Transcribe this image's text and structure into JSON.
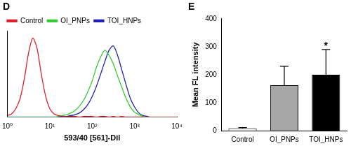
{
  "chart_data": [
    {
      "type": "line",
      "title": "D",
      "x": [
        1,
        1.26,
        1.58,
        2,
        2.51,
        3.16,
        3.98,
        5.01,
        6.31,
        7.94,
        10,
        12.6,
        15.8,
        20,
        25.1,
        31.6,
        39.8,
        50.1,
        63.1,
        79.4,
        100,
        126,
        158,
        200,
        251,
        316,
        398,
        501,
        631,
        794,
        1000,
        1260,
        1580,
        2000,
        2510,
        3160,
        3980,
        5010,
        6310,
        7940,
        10000
      ],
      "series": [
        {
          "name": "Control",
          "color": "#e0202a",
          "values": [
            2,
            4,
            10,
            22,
            45,
            75,
            92,
            80,
            50,
            25,
            10,
            4,
            2,
            1,
            1,
            1,
            1,
            0,
            1,
            1,
            1,
            0,
            1,
            1,
            0,
            1,
            0,
            1,
            0,
            0,
            0,
            0,
            0,
            0,
            0,
            0,
            0,
            0,
            0,
            0,
            0
          ]
        },
        {
          "name": "OI_PNPs",
          "color": "#33cc33",
          "values": [
            0,
            0,
            0,
            0,
            0,
            0,
            0,
            0,
            0,
            0,
            0,
            0,
            1,
            2,
            3,
            5,
            8,
            13,
            20,
            30,
            42,
            58,
            70,
            78,
            72,
            62,
            48,
            35,
            22,
            12,
            6,
            3,
            1,
            0,
            0,
            0,
            0,
            0,
            0,
            0,
            0
          ]
        },
        {
          "name": "TOI_HNPs",
          "color": "#2020b8",
          "values": [
            0,
            0,
            0,
            0,
            0,
            0,
            0,
            0,
            0,
            0,
            0,
            0,
            0,
            0,
            1,
            2,
            3,
            5,
            9,
            15,
            24,
            36,
            50,
            65,
            78,
            83,
            72,
            55,
            38,
            22,
            12,
            5,
            2,
            1,
            0,
            0,
            0,
            0,
            0,
            0,
            0
          ]
        }
      ],
      "xlabel": "593/40 [561]-Dil",
      "log": "x",
      "xlim": [
        1,
        10000
      ],
      "xticks": [
        {
          "value": 1,
          "label": "10⁰"
        },
        {
          "value": 10,
          "label": "10¹"
        },
        {
          "value": 100,
          "label": "10²"
        },
        {
          "value": 1000,
          "label": "10³"
        },
        {
          "value": 10000,
          "label": "10⁴"
        }
      ],
      "ylim": [
        0,
        100
      ],
      "tick_labels": "x",
      "legend": "upper left",
      "grid": false
    },
    {
      "type": "bar",
      "title": "E",
      "categories": [
        "Control",
        "OI_PNPs",
        "TOI_HNPs"
      ],
      "values": [
        8,
        162,
        200
      ],
      "errors": [
        3,
        68,
        90
      ],
      "colors": [
        "#ffffff",
        "#a6a6a6",
        "#000000"
      ],
      "ylabel": "Mean FL intensity",
      "ylim": [
        0,
        400
      ],
      "yticks": [
        0,
        100,
        200,
        300,
        400
      ],
      "grid": false,
      "annotations": [
        {
          "text": "*",
          "category": "TOI_HNPs"
        }
      ]
    }
  ]
}
